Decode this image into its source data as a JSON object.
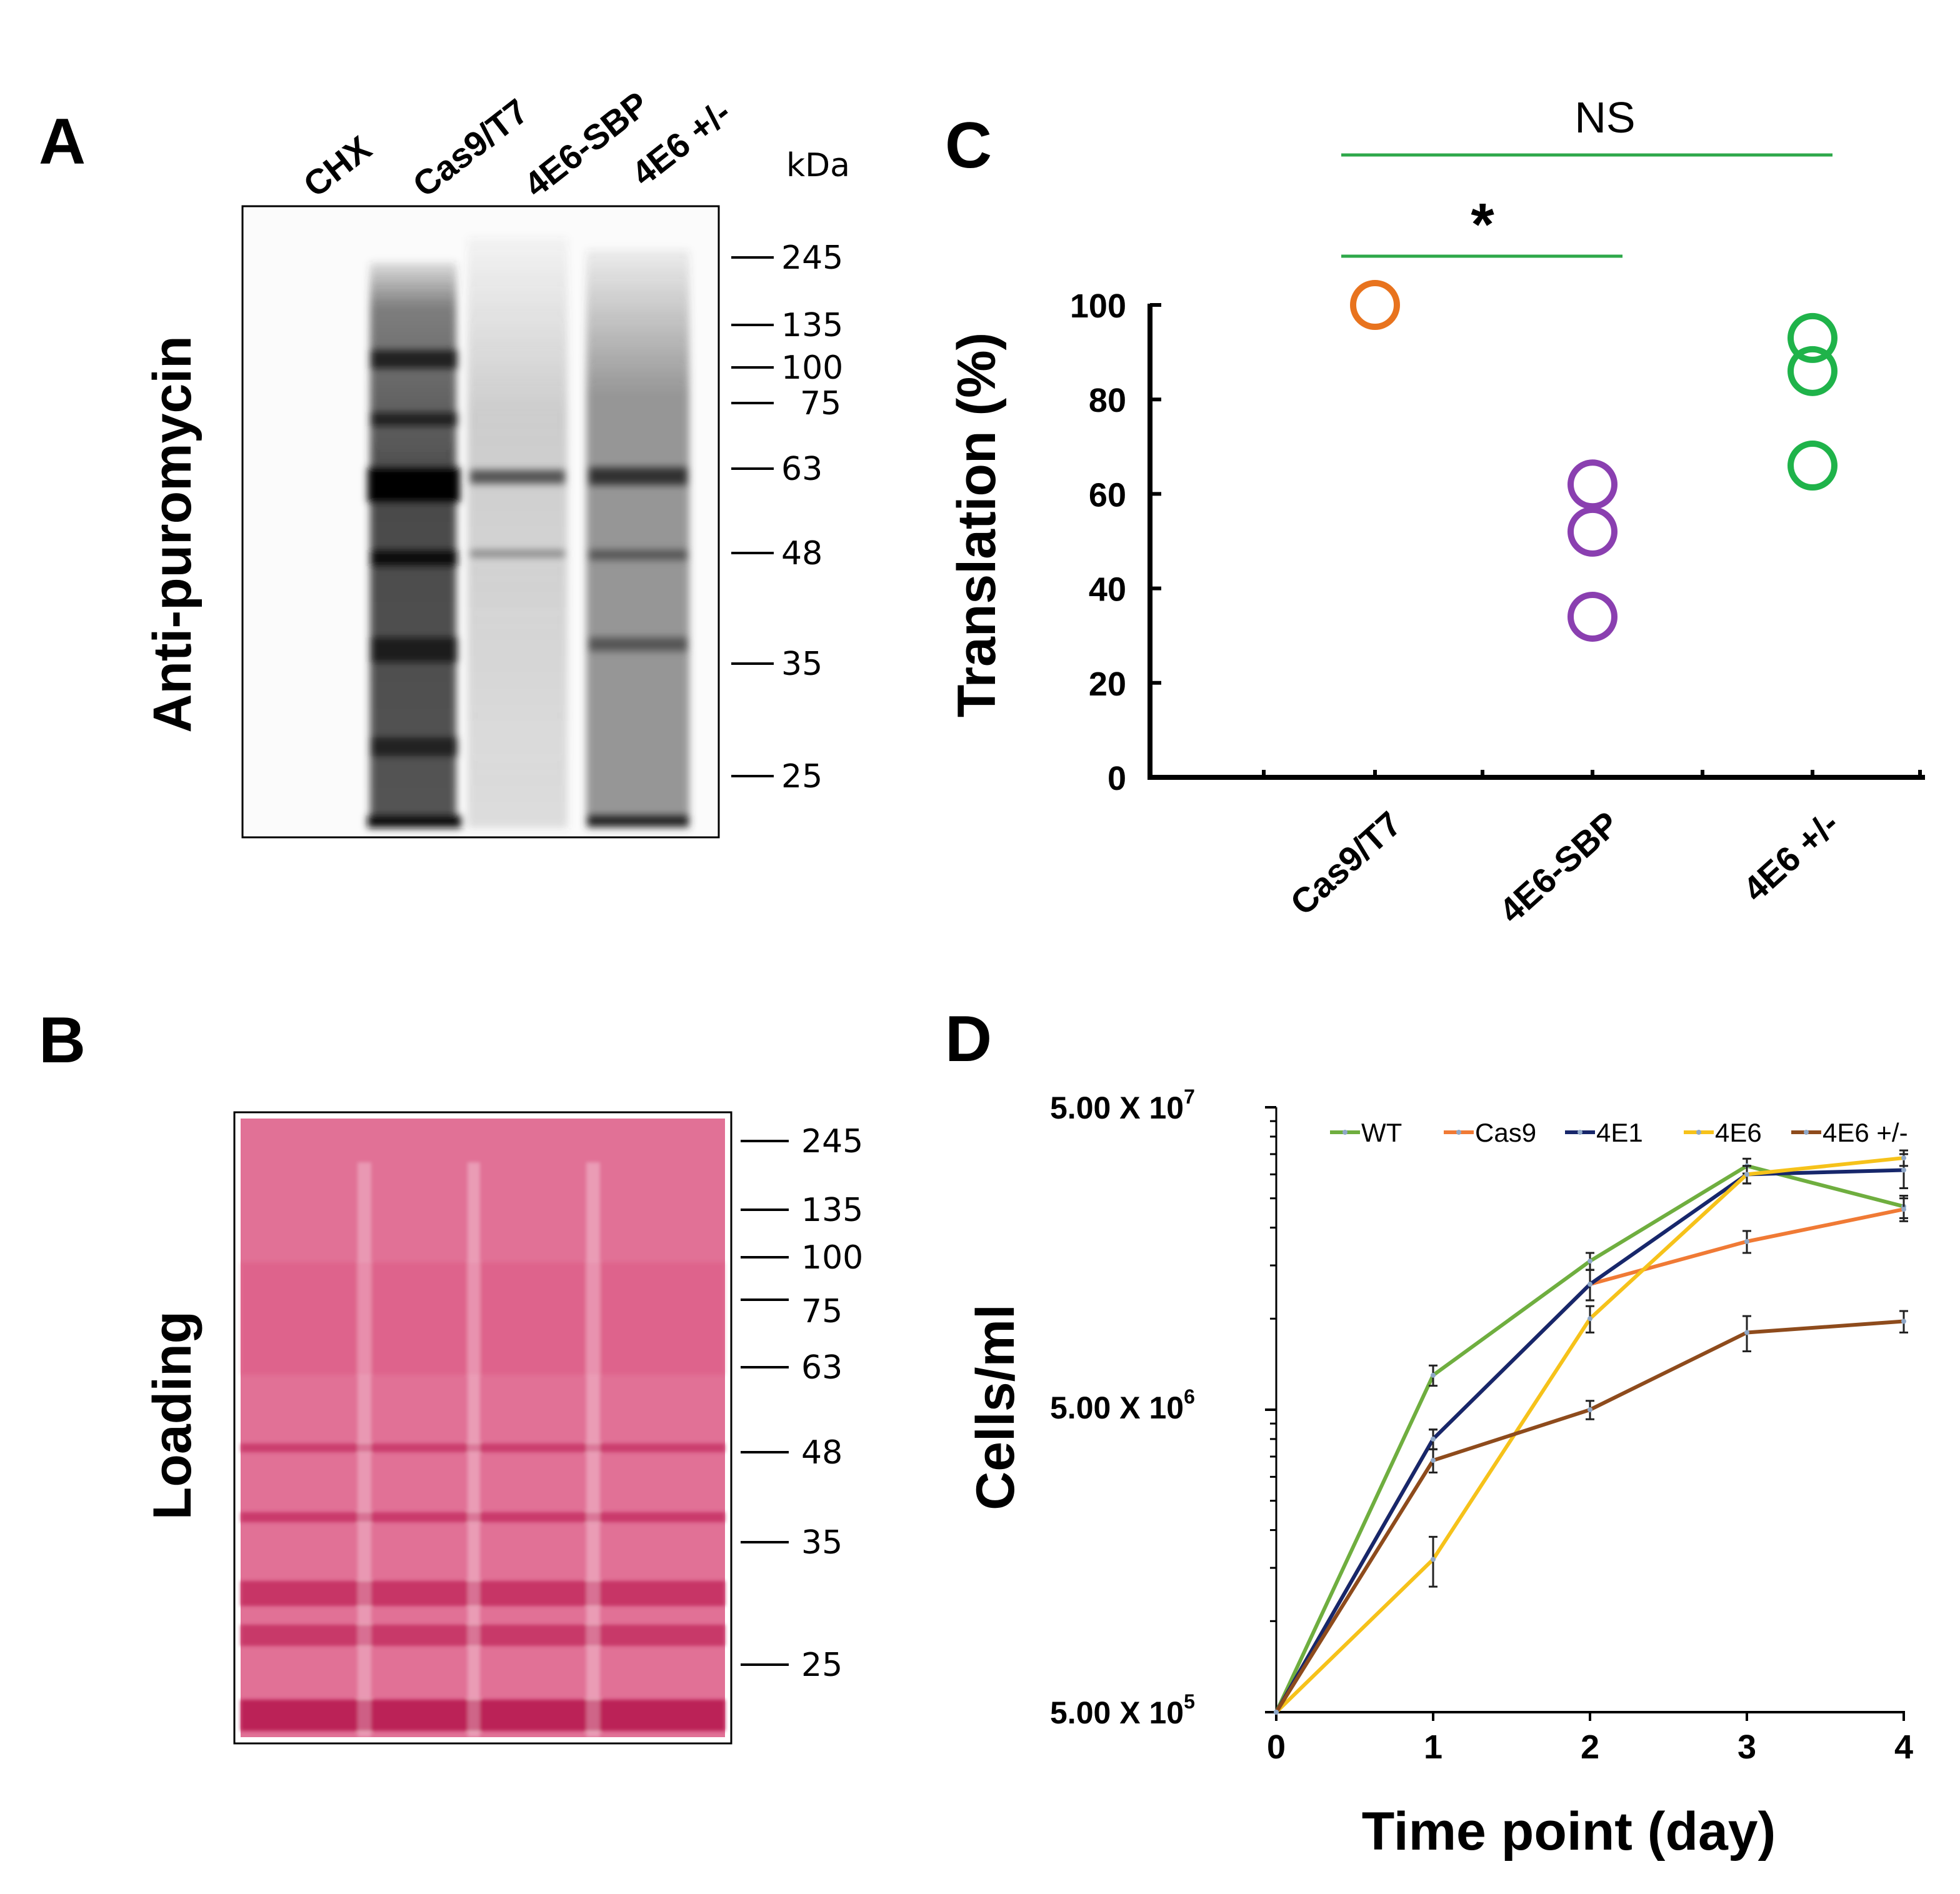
{
  "panel_a": {
    "letter": "A",
    "y_label": "Anti-puromycin",
    "lanes": [
      "CHX",
      "Cas9/T7",
      "4E6-SBP",
      "4E6 +/-"
    ],
    "unit": "kDa",
    "markers": [
      "245",
      "135",
      "100",
      "75",
      "63",
      "48",
      "35",
      "25"
    ]
  },
  "panel_b": {
    "letter": "B",
    "y_label": "Loading",
    "markers": [
      "245",
      "135",
      "100",
      "75",
      "63",
      "48",
      "35",
      "25"
    ],
    "stain_color": "#d63a6e"
  },
  "panel_c": {
    "letter": "C",
    "sig_top": "NS",
    "sig_bottom": "*",
    "bracket_color": "#2ea84a"
  },
  "panel_d": {
    "letter": "D",
    "y_tick_labels": [
      {
        "base": "5.00 X 10",
        "exp": "7"
      },
      {
        "base": "5.00 X 10",
        "exp": "6"
      },
      {
        "base": "5.00 X 10",
        "exp": "5"
      }
    ]
  },
  "chart_data": [
    {
      "type": "scatter",
      "panel": "C",
      "title": "",
      "xlabel": "",
      "ylabel": "Translation (%)",
      "ylim": [
        0,
        100
      ],
      "yticks": [
        0,
        20,
        40,
        60,
        80,
        100
      ],
      "categories": [
        "Cas9/T7",
        "4E6-SBP",
        "4E6 +/-"
      ],
      "series": [
        {
          "name": "Cas9/T7",
          "color": "#e8731e",
          "values": [
            100
          ]
        },
        {
          "name": "4E6-SBP",
          "color": "#8a3fb0",
          "values": [
            62,
            52,
            34
          ]
        },
        {
          "name": "4E6 +/-",
          "color": "#1fb34a",
          "values": [
            93,
            86,
            66
          ]
        }
      ],
      "annotations": [
        {
          "text": "NS",
          "from": "Cas9/T7",
          "to": "4E6 +/-"
        },
        {
          "text": "*",
          "from": "Cas9/T7",
          "to": "4E6-SBP"
        }
      ]
    },
    {
      "type": "line",
      "panel": "D",
      "title": "",
      "xlabel": "Time point (day)",
      "ylabel": "Cells/ml",
      "yscale": "log",
      "ylim": [
        500000,
        50000000
      ],
      "x": [
        0,
        1,
        2,
        3,
        4
      ],
      "series": [
        {
          "name": "WT",
          "color": "#6fae3f",
          "values": [
            500000,
            6500000,
            15500000,
            32000000,
            23500000
          ],
          "errors": [
            0,
            500000,
            1000000,
            1800000,
            2000000
          ]
        },
        {
          "name": "Cas9",
          "color": "#f07a35",
          "values": [
            500000,
            4000000,
            13000000,
            18000000,
            23000000
          ],
          "errors": [
            0,
            300000,
            1500000,
            1500000,
            2000000
          ]
        },
        {
          "name": "4E1",
          "color": "#17276b",
          "values": [
            500000,
            4000000,
            13000000,
            30000000,
            31000000
          ],
          "errors": [
            0,
            300000,
            1500000,
            2000000,
            4000000
          ]
        },
        {
          "name": "4E6",
          "color": "#f6c21a",
          "values": [
            500000,
            1600000,
            10000000,
            30000000,
            34000000
          ],
          "errors": [
            0,
            300000,
            1000000,
            2000000,
            2000000
          ]
        },
        {
          "name": "4E6 +/-",
          "color": "#8e4b1c",
          "values": [
            500000,
            3400000,
            5000000,
            9000000,
            9800000
          ],
          "errors": [
            0,
            300000,
            350000,
            1200000,
            800000
          ]
        }
      ]
    }
  ]
}
